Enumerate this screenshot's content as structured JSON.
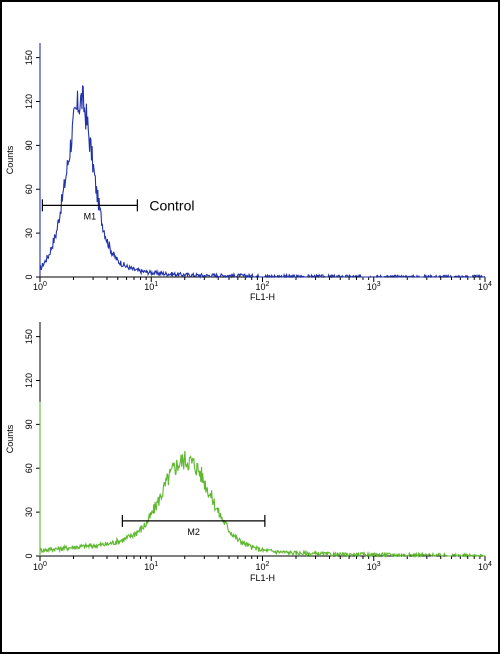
{
  "chart_data": [
    {
      "type": "line",
      "xscale": "log",
      "xlim": [
        1,
        10000
      ],
      "ylim": [
        0,
        160
      ],
      "xlabel": "FL1-H",
      "ylabel": "Counts",
      "xticks": [
        {
          "base": "10",
          "exp": "0"
        },
        {
          "base": "10",
          "exp": "1"
        },
        {
          "base": "10",
          "exp": "2"
        },
        {
          "base": "10",
          "exp": "3"
        },
        {
          "base": "10",
          "exp": "4"
        }
      ],
      "yticks": [
        "0",
        "30",
        "60",
        "90",
        "120",
        "150"
      ],
      "yticks_values": [
        0,
        30,
        60,
        90,
        120,
        150
      ],
      "color": "#2233aa",
      "series": [
        {
          "x": [
            1,
            1.2,
            1.4,
            1.6,
            1.8,
            2.0,
            2.2,
            2.4,
            2.6,
            2.9,
            3.2,
            3.6,
            4.0,
            4.5,
            5,
            6,
            7,
            8,
            10,
            12,
            15,
            20,
            30,
            50,
            100,
            200,
            500,
            1000,
            10000
          ],
          "y": [
            5,
            15,
            30,
            55,
            80,
            105,
            118,
            122,
            110,
            85,
            60,
            38,
            25,
            16,
            11,
            7,
            5,
            4,
            3,
            2.5,
            2,
            1.5,
            1,
            1,
            0.5,
            0.3,
            0.2,
            0.1,
            0
          ]
        }
      ],
      "marker": {
        "label": "M1",
        "x": [
          1.05,
          7.5
        ],
        "y": 49
      },
      "annotation": "Control"
    },
    {
      "type": "line",
      "xscale": "log",
      "xlim": [
        1,
        10000
      ],
      "ylim": [
        0,
        160
      ],
      "xlabel": "FL1-H",
      "ylabel": "Counts",
      "xticks": [
        {
          "base": "10",
          "exp": "0"
        },
        {
          "base": "10",
          "exp": "1"
        },
        {
          "base": "10",
          "exp": "2"
        },
        {
          "base": "10",
          "exp": "3"
        },
        {
          "base": "10",
          "exp": "4"
        }
      ],
      "yticks": [
        "0",
        "30",
        "60",
        "90",
        "120",
        "150"
      ],
      "yticks_values": [
        0,
        30,
        60,
        90,
        120,
        150
      ],
      "color": "#5fb830",
      "series": [
        {
          "x": [
            1,
            1.5,
            2,
            3,
            4,
            5,
            6,
            7,
            8,
            9,
            10,
            12,
            14,
            16,
            18,
            20,
            22,
            25,
            28,
            32,
            36,
            40,
            50,
            60,
            80,
            100,
            130,
            200,
            500,
            1000,
            10000
          ],
          "y": [
            4,
            5,
            6,
            7,
            8,
            10,
            12,
            15,
            18,
            22,
            28,
            40,
            52,
            60,
            64,
            66,
            65,
            62,
            56,
            46,
            38,
            30,
            18,
            11,
            6,
            4,
            3,
            2,
            1,
            1,
            0
          ]
        }
      ],
      "marker": {
        "label": "M2",
        "x": [
          5.5,
          105
        ],
        "y": 24
      }
    }
  ]
}
